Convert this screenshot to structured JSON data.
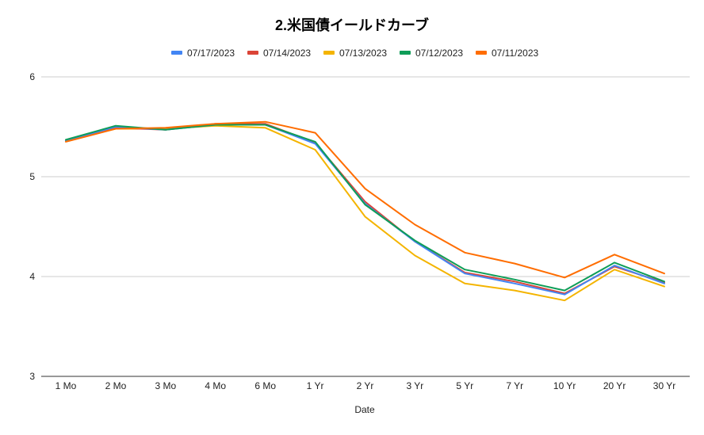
{
  "chart_data": {
    "type": "line",
    "title": "2.米国債イールドカーブ",
    "xlabel": "Date",
    "ylabel": "",
    "categories": [
      "1 Mo",
      "2 Mo",
      "3 Mo",
      "4 Mo",
      "6 Mo",
      "1 Yr",
      "2 Yr",
      "3 Yr",
      "5 Yr",
      "7 Yr",
      "10 Yr",
      "20 Yr",
      "30 Yr"
    ],
    "ylim": [
      3,
      6
    ],
    "yticks": [
      "3",
      "4",
      "5",
      "6"
    ],
    "grid": true,
    "legend_position": "top",
    "series": [
      {
        "name": "07/17/2023",
        "color": "#4285f4",
        "values": [
          5.36,
          5.5,
          5.47,
          5.52,
          5.52,
          5.33,
          4.73,
          4.35,
          4.03,
          3.93,
          3.82,
          4.11,
          3.93
        ]
      },
      {
        "name": "07/14/2023",
        "color": "#db4437",
        "values": [
          5.36,
          5.49,
          5.47,
          5.53,
          5.53,
          5.34,
          4.75,
          4.35,
          4.04,
          3.95,
          3.83,
          4.1,
          3.94
        ]
      },
      {
        "name": "07/13/2023",
        "color": "#f4b400",
        "values": [
          5.36,
          5.48,
          5.48,
          5.51,
          5.49,
          5.27,
          4.6,
          4.21,
          3.93,
          3.86,
          3.76,
          4.07,
          3.9
        ]
      },
      {
        "name": "07/12/2023",
        "color": "#0f9d58",
        "values": [
          5.37,
          5.51,
          5.47,
          5.52,
          5.52,
          5.35,
          4.72,
          4.36,
          4.07,
          3.97,
          3.86,
          4.14,
          3.95
        ]
      },
      {
        "name": "07/11/2023",
        "color": "#ff6d00",
        "values": [
          5.35,
          5.48,
          5.49,
          5.53,
          5.55,
          5.44,
          4.88,
          4.52,
          4.24,
          4.13,
          3.99,
          4.22,
          4.03
        ]
      }
    ]
  }
}
